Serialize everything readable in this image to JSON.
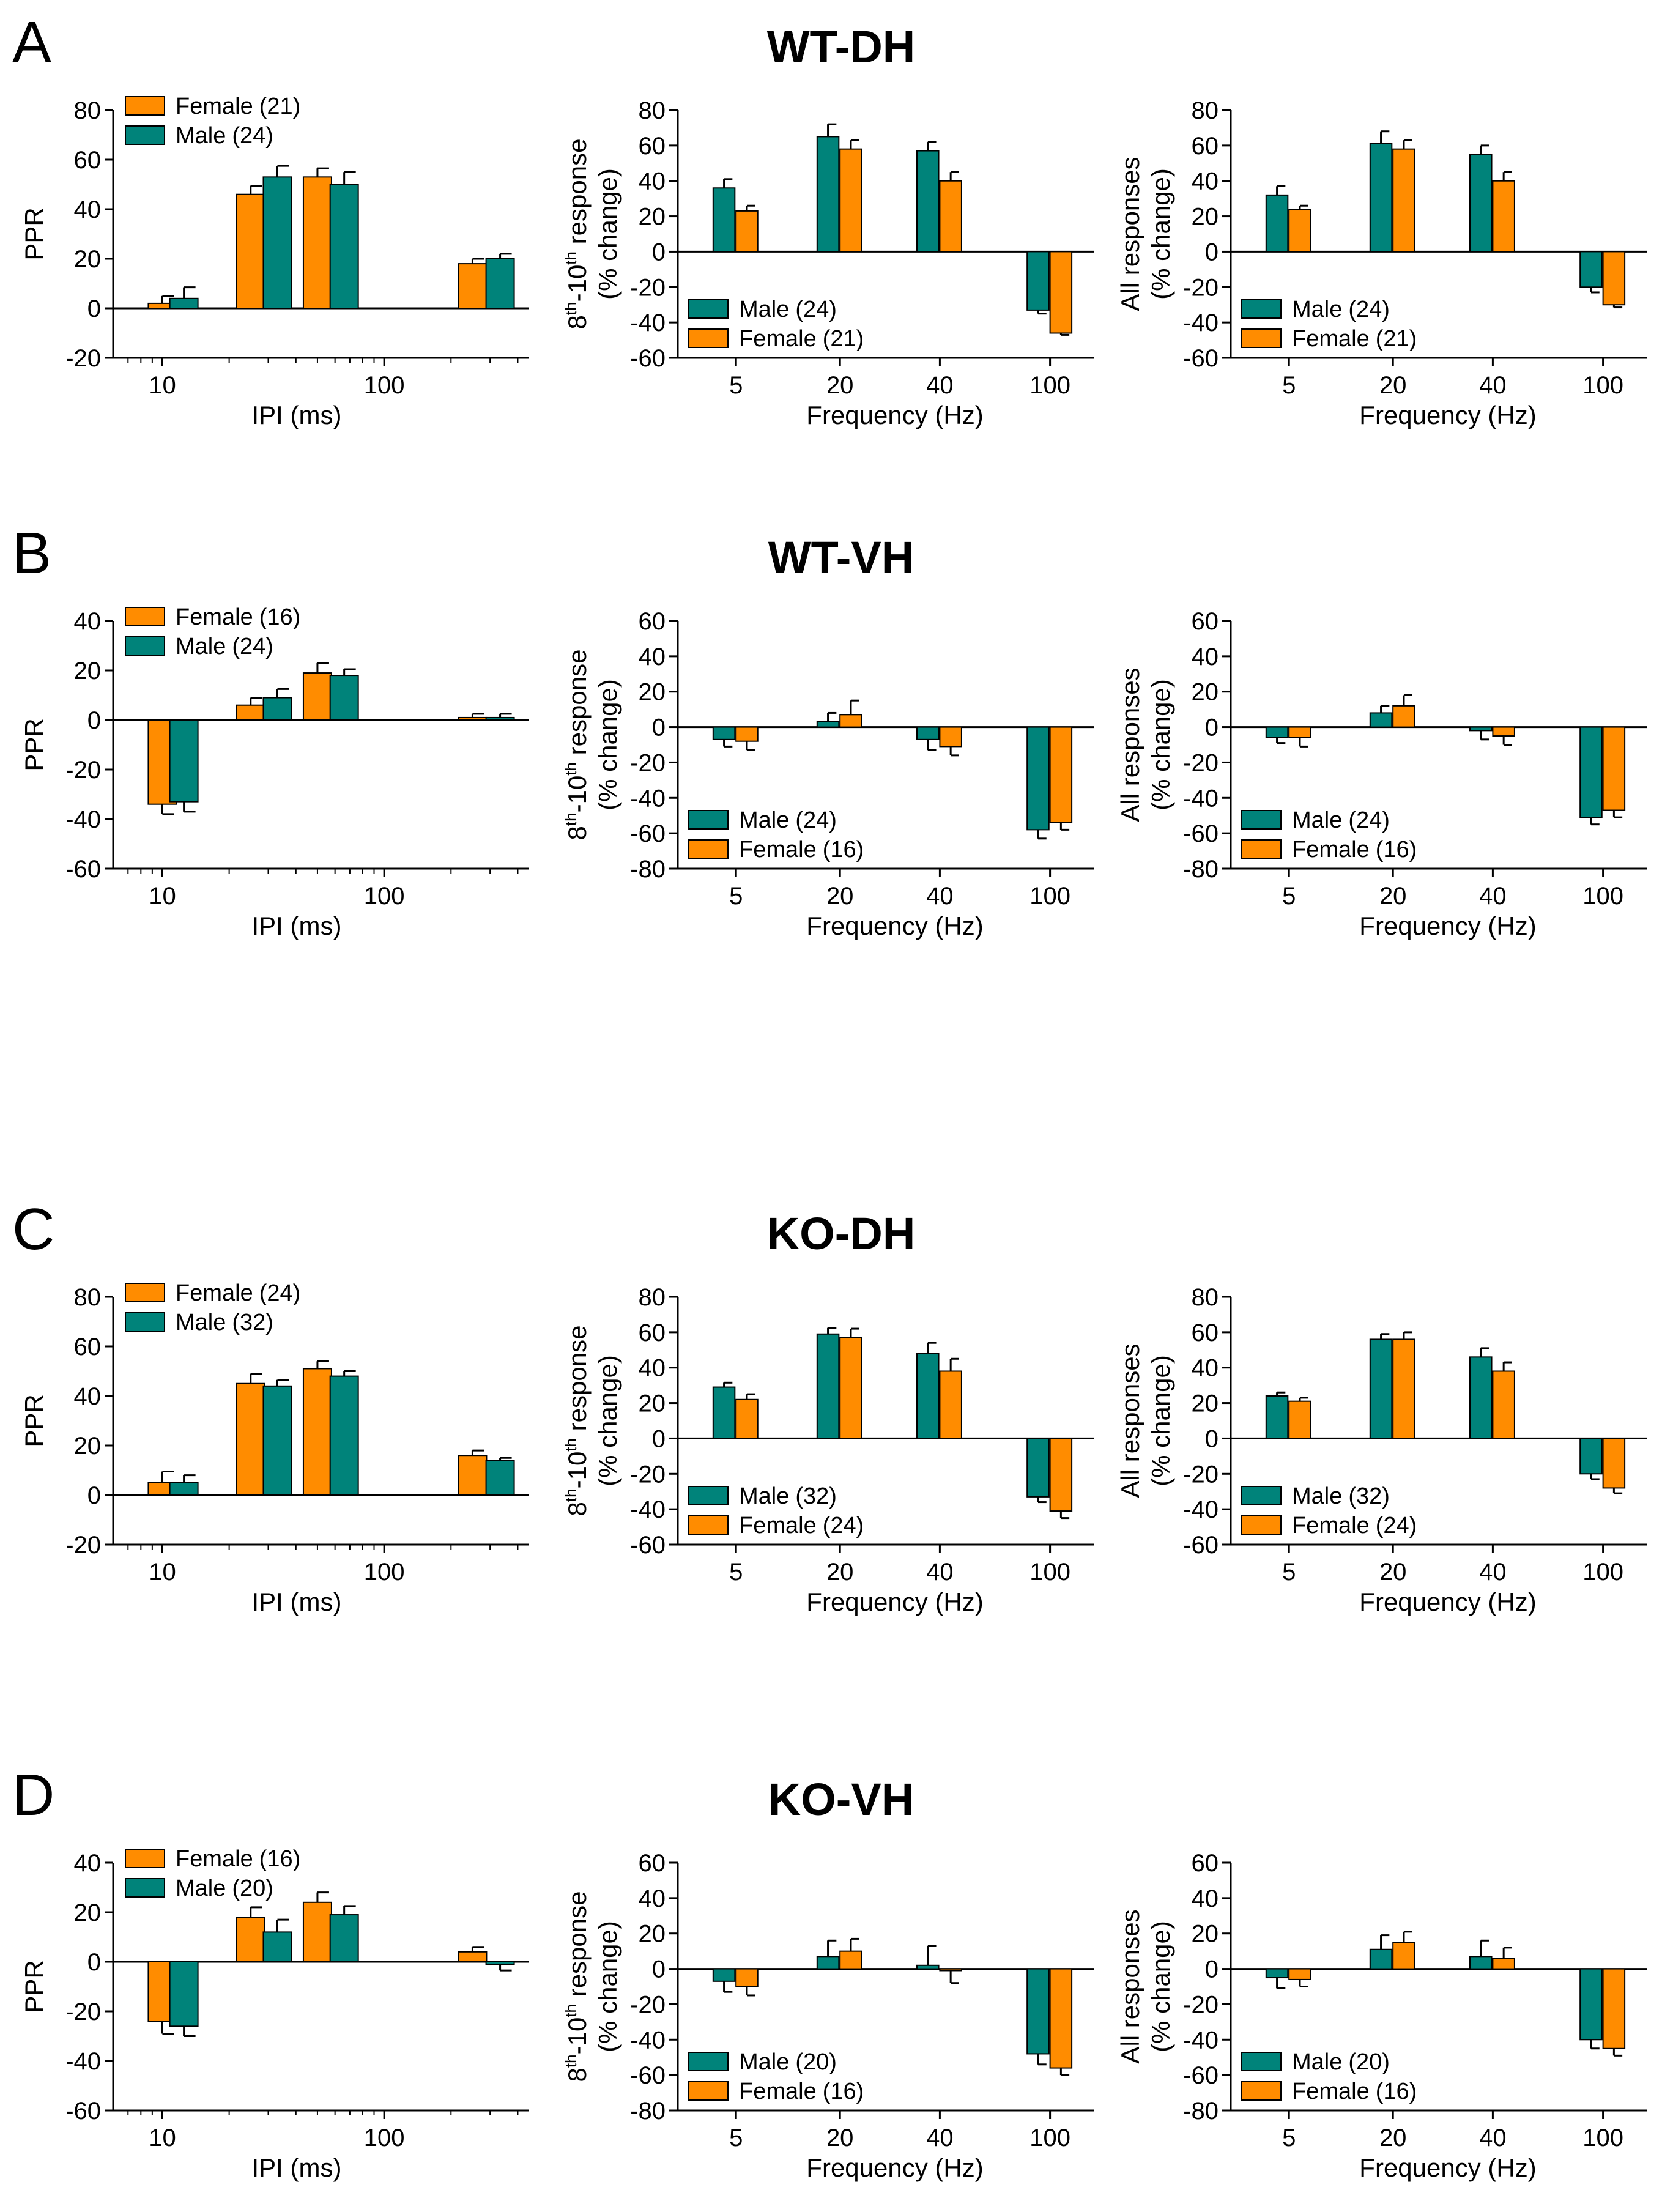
{
  "colors": {
    "male": "#00837a",
    "female": "#ff8c00",
    "error_bar": "#000000"
  },
  "legend_labels": {
    "female": "Female",
    "male": "Male"
  },
  "common": {
    "ppr_ylabel": "PPR",
    "ipi_xlabel": "IPI (ms)",
    "freq_xlabel": "Frequency (Hz)",
    "all_ylabel_line1": "All responses",
    "all_ylabel_line2": "(% change)",
    "late_ylabel_8": "8",
    "late_ylabel_th1": "th",
    "late_ylabel_mid": "-10",
    "late_ylabel_th2": "th",
    "late_ylabel_end": " response",
    "late_ylabel_line2": "(% change)"
  },
  "panels": [
    {
      "letter": "A",
      "title": "WT-DH",
      "n_female": "(21)",
      "n_male": "(24)",
      "chart_data": [
        {
          "type": "bar",
          "kind": "ppr",
          "ylabel": "PPR",
          "xlabel": "IPI (ms)",
          "xscale": "log",
          "ylim": [
            -20,
            80
          ],
          "yticks": [
            -20,
            0,
            20,
            40,
            60,
            80
          ],
          "xticks": [
            {
              "value": 10,
              "label": "10"
            },
            {
              "value": 100,
              "label": "100"
            }
          ],
          "legend_order": [
            "female",
            "male"
          ],
          "series": [
            {
              "name": "Female (21)",
              "key": "female",
              "x": [
                10,
                25,
                50,
                250
              ],
              "values": [
                2,
                46,
                53,
                18
              ],
              "errors": [
                3,
                3.5,
                3.5,
                2
              ]
            },
            {
              "name": "Male (24)",
              "key": "male",
              "x": [
                12.5,
                33,
                66,
                333
              ],
              "values": [
                4,
                53,
                50,
                20
              ],
              "errors": [
                4.5,
                4.5,
                5,
                2
              ]
            }
          ]
        },
        {
          "type": "bar",
          "kind": "late",
          "ylabel": "8th-10th response (% change)",
          "xlabel": "Frequency (Hz)",
          "ylim": [
            -60,
            80
          ],
          "yticks": [
            -60,
            -40,
            -20,
            0,
            20,
            40,
            60,
            80
          ],
          "categories": [
            "5",
            "20",
            "40",
            "100"
          ],
          "legend_order": [
            "male",
            "female"
          ],
          "series": [
            {
              "name": "Male (24)",
              "key": "male",
              "values": [
                36,
                65,
                57,
                -33
              ],
              "errors": [
                5,
                7,
                5,
                2
              ]
            },
            {
              "name": "Female (21)",
              "key": "female",
              "values": [
                23,
                58,
                40,
                -46
              ],
              "errors": [
                3,
                5,
                5,
                1
              ]
            }
          ]
        },
        {
          "type": "bar",
          "kind": "all",
          "ylabel": "All responses (% change)",
          "xlabel": "Frequency (Hz)",
          "ylim": [
            -60,
            80
          ],
          "yticks": [
            -60,
            -40,
            -20,
            0,
            20,
            40,
            60,
            80
          ],
          "categories": [
            "5",
            "20",
            "40",
            "100"
          ],
          "legend_order": [
            "male",
            "female"
          ],
          "series": [
            {
              "name": "Male (24)",
              "key": "male",
              "values": [
                32,
                61,
                55,
                -20
              ],
              "errors": [
                5,
                7,
                5,
                3
              ]
            },
            {
              "name": "Female (21)",
              "key": "female",
              "values": [
                24,
                58,
                40,
                -30
              ],
              "errors": [
                2,
                5,
                5,
                1.5
              ]
            }
          ]
        }
      ]
    },
    {
      "letter": "B",
      "title": "WT-VH",
      "n_female": "(16)",
      "n_male": "(24)",
      "chart_data": [
        {
          "type": "bar",
          "kind": "ppr",
          "ylabel": "PPR",
          "xlabel": "IPI (ms)",
          "xscale": "log",
          "ylim": [
            -60,
            40
          ],
          "yticks": [
            -60,
            -40,
            -20,
            0,
            20,
            40
          ],
          "xticks": [
            {
              "value": 10,
              "label": "10"
            },
            {
              "value": 100,
              "label": "100"
            }
          ],
          "legend_order": [
            "female",
            "male"
          ],
          "series": [
            {
              "name": "Female (16)",
              "key": "female",
              "x": [
                10,
                25,
                50,
                250
              ],
              "values": [
                -34,
                6,
                19,
                1
              ],
              "errors": [
                4,
                3,
                4,
                1.5
              ]
            },
            {
              "name": "Male (24)",
              "key": "male",
              "x": [
                12.5,
                33,
                66,
                333
              ],
              "values": [
                -33,
                9,
                18,
                1
              ],
              "errors": [
                4,
                3.5,
                2.5,
                1.5
              ]
            }
          ]
        },
        {
          "type": "bar",
          "kind": "late",
          "ylabel": "8th-10th response (% change)",
          "xlabel": "Frequency (Hz)",
          "ylim": [
            -80,
            60
          ],
          "yticks": [
            -80,
            -60,
            -40,
            -20,
            0,
            20,
            40,
            60
          ],
          "categories": [
            "5",
            "20",
            "40",
            "100"
          ],
          "legend_order": [
            "male",
            "female"
          ],
          "series": [
            {
              "name": "Male (24)",
              "key": "male",
              "values": [
                -7,
                3,
                -7,
                -58
              ],
              "errors": [
                4,
                5,
                6,
                5
              ]
            },
            {
              "name": "Female (16)",
              "key": "female",
              "values": [
                -8,
                7,
                -11,
                -54
              ],
              "errors": [
                5,
                8,
                5,
                4
              ]
            }
          ]
        },
        {
          "type": "bar",
          "kind": "all",
          "ylabel": "All responses (% change)",
          "xlabel": "Frequency (Hz)",
          "ylim": [
            -80,
            60
          ],
          "yticks": [
            -80,
            -60,
            -40,
            -20,
            0,
            20,
            40,
            60
          ],
          "categories": [
            "5",
            "20",
            "40",
            "100"
          ],
          "legend_order": [
            "male",
            "female"
          ],
          "series": [
            {
              "name": "Male (24)",
              "key": "male",
              "values": [
                -6,
                8,
                -2,
                -51
              ],
              "errors": [
                3,
                4,
                5,
                4
              ]
            },
            {
              "name": "Female (16)",
              "key": "female",
              "values": [
                -6,
                12,
                -5,
                -47
              ],
              "errors": [
                5,
                6,
                5,
                4
              ]
            }
          ]
        }
      ]
    },
    {
      "letter": "C",
      "title": "KO-DH",
      "n_female": "(24)",
      "n_male": "(32)",
      "chart_data": [
        {
          "type": "bar",
          "kind": "ppr",
          "ylabel": "PPR",
          "xlabel": "IPI (ms)",
          "xscale": "log",
          "ylim": [
            -20,
            80
          ],
          "yticks": [
            -20,
            0,
            20,
            40,
            60,
            80
          ],
          "xticks": [
            {
              "value": 10,
              "label": "10"
            },
            {
              "value": 100,
              "label": "100"
            }
          ],
          "legend_order": [
            "female",
            "male"
          ],
          "series": [
            {
              "name": "Female (24)",
              "key": "female",
              "x": [
                10,
                25,
                50,
                250
              ],
              "values": [
                5,
                45,
                51,
                16
              ],
              "errors": [
                4.5,
                4,
                3,
                2
              ]
            },
            {
              "name": "Male (32)",
              "key": "male",
              "x": [
                12.5,
                33,
                66,
                333
              ],
              "values": [
                5,
                44,
                48,
                14
              ],
              "errors": [
                3,
                2.5,
                2,
                1
              ]
            }
          ]
        },
        {
          "type": "bar",
          "kind": "late",
          "ylabel": "8th-10th response (% change)",
          "xlabel": "Frequency (Hz)",
          "ylim": [
            -60,
            80
          ],
          "yticks": [
            -60,
            -40,
            -20,
            0,
            20,
            40,
            60,
            80
          ],
          "categories": [
            "5",
            "20",
            "40",
            "100"
          ],
          "legend_order": [
            "male",
            "female"
          ],
          "series": [
            {
              "name": "Male (32)",
              "key": "male",
              "values": [
                29,
                59,
                48,
                -33
              ],
              "errors": [
                2.5,
                3.5,
                6,
                3
              ]
            },
            {
              "name": "Female (24)",
              "key": "female",
              "values": [
                22,
                57,
                38,
                -41
              ],
              "errors": [
                3,
                5,
                7,
                4
              ]
            }
          ]
        },
        {
          "type": "bar",
          "kind": "all",
          "ylabel": "All responses (% change)",
          "xlabel": "Frequency (Hz)",
          "ylim": [
            -60,
            80
          ],
          "yticks": [
            -60,
            -40,
            -20,
            0,
            20,
            40,
            60,
            80
          ],
          "categories": [
            "5",
            "20",
            "40",
            "100"
          ],
          "legend_order": [
            "male",
            "female"
          ],
          "series": [
            {
              "name": "Male (32)",
              "key": "male",
              "values": [
                24,
                56,
                46,
                -20
              ],
              "errors": [
                2,
                3,
                5,
                3
              ]
            },
            {
              "name": "Female (24)",
              "key": "female",
              "values": [
                21,
                56,
                38,
                -28
              ],
              "errors": [
                2,
                4,
                5,
                3
              ]
            }
          ]
        }
      ]
    },
    {
      "letter": "D",
      "title": "KO-VH",
      "n_female": "(16)",
      "n_male": "(20)",
      "chart_data": [
        {
          "type": "bar",
          "kind": "ppr",
          "ylabel": "PPR",
          "xlabel": "IPI (ms)",
          "xscale": "log",
          "ylim": [
            -60,
            40
          ],
          "yticks": [
            -60,
            -40,
            -20,
            0,
            20,
            40
          ],
          "xticks": [
            {
              "value": 10,
              "label": "10"
            },
            {
              "value": 100,
              "label": "100"
            }
          ],
          "legend_order": [
            "female",
            "male"
          ],
          "series": [
            {
              "name": "Female (16)",
              "key": "female",
              "x": [
                10,
                25,
                50,
                250
              ],
              "values": [
                -24,
                18,
                24,
                4
              ],
              "errors": [
                5,
                4,
                4,
                2
              ]
            },
            {
              "name": "Male (20)",
              "key": "male",
              "x": [
                12.5,
                33,
                66,
                333
              ],
              "values": [
                -26,
                12,
                19,
                -1
              ],
              "errors": [
                4,
                5,
                3.5,
                2.5
              ]
            }
          ]
        },
        {
          "type": "bar",
          "kind": "late",
          "ylabel": "8th-10th response (% change)",
          "xlabel": "Frequency (Hz)",
          "ylim": [
            -80,
            60
          ],
          "yticks": [
            -80,
            -60,
            -40,
            -20,
            0,
            20,
            40,
            60
          ],
          "categories": [
            "5",
            "20",
            "40",
            "100"
          ],
          "legend_order": [
            "male",
            "female"
          ],
          "series": [
            {
              "name": "Male (20)",
              "key": "male",
              "values": [
                -7,
                7,
                2,
                -48
              ],
              "errors": [
                6,
                9,
                11,
                6
              ]
            },
            {
              "name": "Female (16)",
              "key": "female",
              "values": [
                -10,
                10,
                -1,
                -56
              ],
              "errors": [
                5,
                7,
                7,
                4
              ]
            }
          ]
        },
        {
          "type": "bar",
          "kind": "all",
          "ylabel": "All responses (% change)",
          "xlabel": "Frequency (Hz)",
          "ylim": [
            -80,
            60
          ],
          "yticks": [
            -80,
            -60,
            -40,
            -20,
            0,
            20,
            40,
            60
          ],
          "categories": [
            "5",
            "20",
            "40",
            "100"
          ],
          "legend_order": [
            "male",
            "female"
          ],
          "series": [
            {
              "name": "Male (20)",
              "key": "male",
              "values": [
                -5,
                11,
                7,
                -40
              ],
              "errors": [
                6,
                8,
                9,
                5
              ]
            },
            {
              "name": "Female (16)",
              "key": "female",
              "values": [
                -6,
                15,
                6,
                -45
              ],
              "errors": [
                4,
                6,
                6,
                4
              ]
            }
          ]
        }
      ]
    }
  ]
}
